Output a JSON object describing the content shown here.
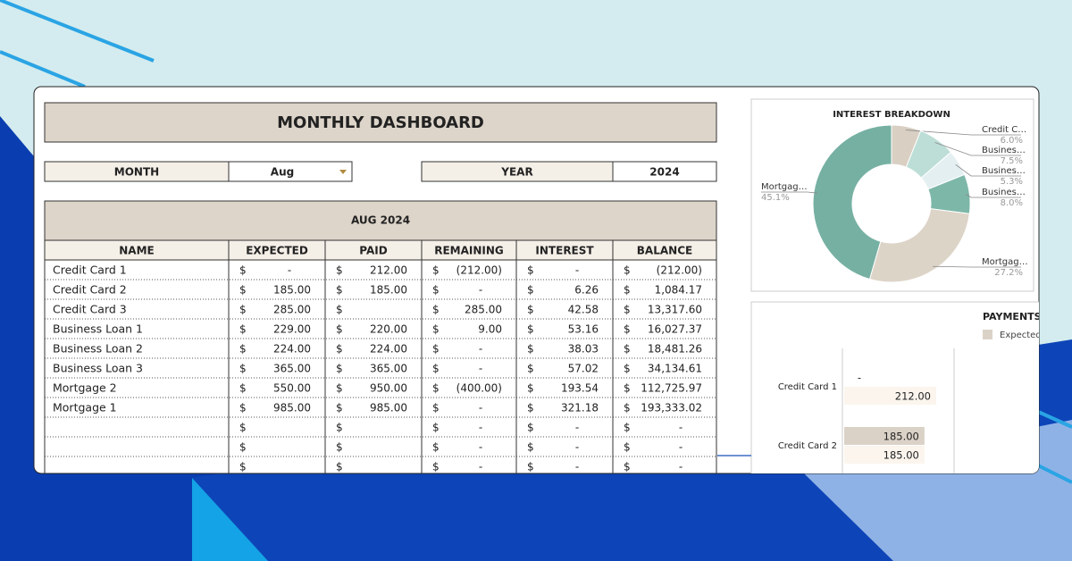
{
  "header": {
    "title": "MONTHLY DASHBOARD"
  },
  "selector": {
    "month_label": "MONTH",
    "month": "Aug",
    "year_label": "YEAR",
    "year": "2024"
  },
  "table": {
    "title": "AUG 2024",
    "currency": "$",
    "columns": [
      "NAME",
      "EXPECTED",
      "PAID",
      "REMAINING",
      "INTEREST",
      "BALANCE"
    ],
    "rows": [
      [
        "Credit Card 1",
        "-",
        "212.00",
        "(212.00)",
        "-",
        "(212.00)"
      ],
      [
        "Credit Card 2",
        "185.00",
        "185.00",
        "-",
        "6.26",
        "1,084.17"
      ],
      [
        "Credit Card 3",
        "285.00",
        null,
        "285.00",
        "42.58",
        "13,317.60"
      ],
      [
        "Business Loan 1",
        "229.00",
        "220.00",
        "9.00",
        "53.16",
        "16,027.37"
      ],
      [
        "Business Loan 2",
        "224.00",
        "224.00",
        "-",
        "38.03",
        "18,481.26"
      ],
      [
        "Business Loan 3",
        "365.00",
        "365.00",
        "-",
        "57.02",
        "34,134.61"
      ],
      [
        "Mortgage 2",
        "550.00",
        "950.00",
        "(400.00)",
        "193.54",
        "112,725.97"
      ],
      [
        "Mortgage 1",
        "985.00",
        "985.00",
        "-",
        "321.18",
        "193,333.02"
      ],
      [
        null,
        null,
        null,
        "-",
        "-",
        "-"
      ],
      [
        null,
        null,
        null,
        "-",
        "-",
        "-"
      ],
      [
        null,
        null,
        null,
        "-",
        "-",
        "-"
      ]
    ]
  },
  "chart_data": [
    {
      "type": "pie",
      "title": "INTEREST BREAKDOWN",
      "categories": [
        "Credit C…",
        "Busines…",
        "Busines…",
        "Busines…",
        "Mortgag…",
        "Mortgag…"
      ],
      "values": [
        6.0,
        7.5,
        5.3,
        8.0,
        27.2,
        45.1
      ],
      "value_labels": [
        "6.0%",
        "7.5%",
        "5.3%",
        "8.0%",
        "27.2%",
        "45.1%"
      ],
      "colors": [
        "#d9cfc3",
        "#bcded6",
        "#e4eff1",
        "#7db7a8",
        "#ddd4c8",
        "#76b0a3"
      ]
    },
    {
      "type": "hbar",
      "title": "PAYMENTS",
      "categories": [
        "Credit Card 1",
        "Credit Card 2"
      ],
      "series": [
        {
          "name": "Expected",
          "color": "#dbd2c7",
          "values": [
            0,
            185
          ],
          "value_labels": [
            "-",
            "185.00"
          ]
        },
        {
          "color": "#fbf5ee",
          "values": [
            212,
            185
          ],
          "value_labels": [
            "212.00",
            "185.00"
          ]
        }
      ]
    }
  ]
}
